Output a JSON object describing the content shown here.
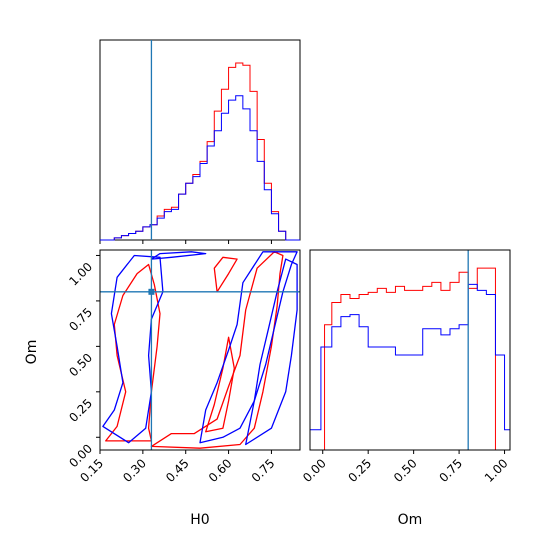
{
  "chart_data": {
    "type": "corner",
    "parameters": [
      "H0",
      "Om"
    ],
    "truth": {
      "H0": 0.33,
      "Om": 0.8
    },
    "colors": {
      "series_a": "#ff0000",
      "series_b": "#0000ff",
      "truth": "#1f77b4",
      "frame": "#000000"
    },
    "h0_histogram": {
      "xlim": [
        0.15,
        0.85
      ],
      "bins": [
        0.15,
        0.175,
        0.2,
        0.225,
        0.25,
        0.275,
        0.3,
        0.325,
        0.35,
        0.375,
        0.4,
        0.425,
        0.45,
        0.475,
        0.5,
        0.525,
        0.55,
        0.575,
        0.6,
        0.625,
        0.65,
        0.675,
        0.7,
        0.725,
        0.75,
        0.775,
        0.8,
        0.825,
        0.85
      ],
      "series": [
        {
          "values": [
            0,
            0,
            1,
            2,
            3,
            4,
            6,
            7,
            11,
            14,
            15,
            21,
            26,
            30,
            36,
            45,
            59,
            69,
            79,
            81,
            80,
            68,
            46,
            26,
            13,
            4,
            0,
            0
          ]
        },
        {
          "values": [
            0,
            0,
            1,
            2,
            3,
            4,
            6,
            7,
            10,
            13,
            14,
            21,
            26,
            29,
            35,
            43,
            50,
            58,
            64,
            66,
            60,
            50,
            36,
            23,
            12,
            4,
            0,
            0
          ]
        }
      ]
    },
    "om_histogram": {
      "xlim": [
        -0.07,
        1.03
      ],
      "bins": [
        -0.07,
        -0.01,
        0.01,
        0.05,
        0.1,
        0.15,
        0.2,
        0.25,
        0.3,
        0.35,
        0.4,
        0.45,
        0.5,
        0.55,
        0.6,
        0.65,
        0.7,
        0.75,
        0.8,
        0.85,
        0.9,
        0.95,
        1.0,
        1.03
      ],
      "series": [
        {
          "values": [
            0,
            0,
            62,
            73,
            77,
            75,
            77,
            78,
            80,
            78,
            81,
            79,
            79,
            81,
            83,
            79,
            83,
            88,
            80,
            90,
            90,
            0,
            0
          ]
        },
        {
          "values": [
            10,
            51,
            51,
            61,
            66,
            67,
            61,
            51,
            51,
            51,
            47,
            47,
            47,
            60,
            60,
            57,
            60,
            62,
            82,
            79,
            77,
            47,
            10
          ]
        }
      ]
    },
    "joint": {
      "xlim": [
        0.15,
        0.85
      ],
      "ylim": [
        -0.07,
        1.03
      ],
      "truth_marker": [
        0.33,
        0.8
      ],
      "series": [
        {
          "contours": [
            [
              [
                0.17,
                -0.02
              ],
              [
                0.21,
                0.06
              ],
              [
                0.24,
                0.25
              ],
              [
                0.21,
                0.45
              ],
              [
                0.2,
                0.62
              ],
              [
                0.23,
                0.78
              ],
              [
                0.28,
                0.9
              ],
              [
                0.32,
                0.95
              ],
              [
                0.34,
                0.84
              ],
              [
                0.36,
                0.68
              ],
              [
                0.35,
                0.5
              ],
              [
                0.33,
                0.25
              ],
              [
                0.32,
                0.05
              ],
              [
                0.33,
                -0.02
              ]
            ],
            [
              [
                0.33,
                -0.05
              ],
              [
                0.5,
                -0.06
              ],
              [
                0.64,
                -0.04
              ],
              [
                0.69,
                0.05
              ],
              [
                0.72,
                0.25
              ],
              [
                0.75,
                0.5
              ],
              [
                0.77,
                0.72
              ],
              [
                0.78,
                0.9
              ],
              [
                0.79,
                1.0
              ],
              [
                0.76,
                1.02
              ],
              [
                0.7,
                0.93
              ],
              [
                0.66,
                0.7
              ],
              [
                0.64,
                0.45
              ],
              [
                0.6,
                0.28
              ],
              [
                0.56,
                0.1
              ],
              [
                0.48,
                0.02
              ],
              [
                0.4,
                0.02
              ]
            ],
            [
              [
                0.52,
                0.03
              ],
              [
                0.58,
                0.05
              ],
              [
                0.6,
                0.2
              ],
              [
                0.62,
                0.38
              ],
              [
                0.6,
                0.55
              ],
              [
                0.58,
                0.38
              ],
              [
                0.55,
                0.18
              ]
            ],
            [
              [
                0.56,
                0.8
              ],
              [
                0.6,
                0.9
              ],
              [
                0.63,
                0.98
              ],
              [
                0.58,
                0.99
              ],
              [
                0.55,
                0.93
              ]
            ]
          ]
        },
        {
          "contours": [
            [
              [
                0.16,
                0.06
              ],
              [
                0.2,
                0.15
              ],
              [
                0.23,
                0.3
              ],
              [
                0.21,
                0.5
              ],
              [
                0.19,
                0.68
              ],
              [
                0.21,
                0.88
              ],
              [
                0.27,
                1.0
              ],
              [
                0.36,
                0.99
              ],
              [
                0.37,
                0.8
              ],
              [
                0.33,
                0.65
              ],
              [
                0.32,
                0.45
              ],
              [
                0.33,
                0.25
              ],
              [
                0.31,
                0.05
              ],
              [
                0.25,
                -0.03
              ]
            ],
            [
              [
                0.5,
                -0.03
              ],
              [
                0.58,
                0.0
              ],
              [
                0.64,
                0.05
              ],
              [
                0.69,
                0.2
              ],
              [
                0.73,
                0.4
              ],
              [
                0.76,
                0.6
              ],
              [
                0.79,
                0.8
              ],
              [
                0.82,
                0.95
              ],
              [
                0.84,
                1.02
              ],
              [
                0.72,
                1.02
              ],
              [
                0.65,
                0.85
              ],
              [
                0.63,
                0.62
              ],
              [
                0.6,
                0.48
              ],
              [
                0.56,
                0.3
              ],
              [
                0.52,
                0.15
              ]
            ],
            [
              [
                0.66,
                -0.04
              ],
              [
                0.75,
                0.05
              ],
              [
                0.8,
                0.25
              ],
              [
                0.82,
                0.45
              ],
              [
                0.84,
                0.7
              ],
              [
                0.84,
                0.95
              ],
              [
                0.8,
                0.98
              ],
              [
                0.77,
                0.8
              ],
              [
                0.74,
                0.6
              ],
              [
                0.71,
                0.4
              ],
              [
                0.69,
                0.2
              ]
            ],
            [
              [
                0.33,
                0.98
              ],
              [
                0.36,
                1.01
              ],
              [
                0.47,
                1.02
              ],
              [
                0.52,
                1.01
              ],
              [
                0.4,
                0.99
              ]
            ]
          ]
        }
      ]
    },
    "xticks_h0": [
      "0.15",
      "0.30",
      "0.45",
      "0.60",
      "0.75"
    ],
    "yticks_om": [
      "0.00",
      "0.25",
      "0.50",
      "0.75",
      "1.00"
    ],
    "xticks_om": [
      "0.00",
      "0.25",
      "0.50",
      "0.75",
      "1.00"
    ],
    "xlabel_h0": "H0",
    "ylabel_om": "Om",
    "xlabel_om": "Om"
  }
}
